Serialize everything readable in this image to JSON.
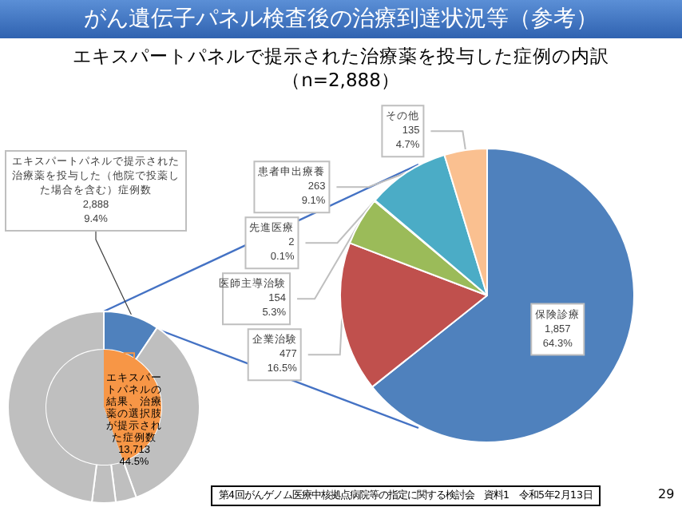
{
  "chart_data": [
    {
      "type": "pie",
      "title": "がん遺伝子パネル検査後の治療到達状況等（参考）",
      "categories": [
        "エキスパートパネルで提示された治療薬を投与した（他院で投薬した場合を含む）症例数",
        "エキスパートパネルの結果、治療薬の選択肢が提示された症例数",
        null,
        null,
        null,
        null
      ],
      "series": [
        {
          "values": [
            9.4,
            null,
            35.1,
            3.5,
            4.0,
            48.0
          ],
          "colors": [
            "#4f81bd",
            null,
            "#bfbfbf",
            "#bfbfbf",
            "#bfbfbf",
            "#bfbfbf"
          ],
          "value_labels": [
            "2,888\n9.4%",
            null,
            null,
            null,
            null,
            null
          ]
        },
        {
          "values": [
            null,
            44.5,
            null,
            null,
            null,
            55.5
          ],
          "colors": [
            null,
            "#f79646",
            null,
            null,
            null,
            "#bfbfbf"
          ],
          "value_labels": [
            null,
            "13,713\n44.5%",
            null,
            null,
            null,
            null
          ]
        }
      ]
    },
    {
      "type": "pie",
      "title": "エキスパートパネルで提示された治療薬を投与した症例の内訳",
      "subtitle": "（n=2,888）",
      "categories": [
        "保険診療",
        "企業治験",
        "医師主導治験",
        "先進医療",
        "患者申出療養",
        "その他"
      ],
      "values": [
        64.3,
        16.5,
        5.3,
        0.1,
        9.1,
        4.7
      ],
      "colors": [
        "#4f81bd",
        "#c0504d",
        "#9bbb59",
        "#8064a2",
        "#4bacc6",
        "#fac090"
      ],
      "value_labels": [
        "1,857\n64.3%",
        "477\n16.5%",
        "154\n5.3%",
        "2\n0.1%",
        "263\n9.1%",
        "135\n4.7%"
      ],
      "annotations": [
        "第4回がんゲノム医療中核拠点病院等の指定に関する検討会　資料1　令和5年2月13日",
        "29"
      ]
    }
  ]
}
